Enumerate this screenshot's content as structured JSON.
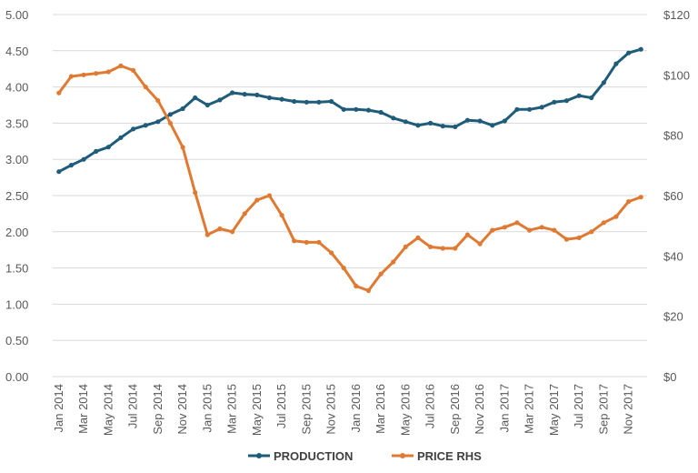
{
  "chart_data": {
    "type": "line",
    "title": "",
    "xlabel": "",
    "ylabel": "",
    "y2label": "",
    "x": [
      "Jan 2014",
      "Feb 2014",
      "Mar 2014",
      "Apr 2014",
      "May 2014",
      "Jun 2014",
      "Jul 2014",
      "Aug 2014",
      "Sep 2014",
      "Oct 2014",
      "Nov 2014",
      "Dec 2014",
      "Jan 2015",
      "Feb 2015",
      "Mar 2015",
      "Apr 2015",
      "May 2015",
      "Jun 2015",
      "Jul 2015",
      "Aug 2015",
      "Sep 2015",
      "Oct 2015",
      "Nov 2015",
      "Dec 2015",
      "Jan 2016",
      "Feb 2016",
      "Mar 2016",
      "Apr 2016",
      "May 2016",
      "Jun 2016",
      "Jul 2016",
      "Aug 2016",
      "Sep 2016",
      "Oct 2016",
      "Nov 2016",
      "Dec 2016",
      "Jan 2017",
      "Feb 2017",
      "Mar 2017",
      "Apr 2017",
      "May 2017",
      "Jun 2017",
      "Jul 2017",
      "Aug 2017",
      "Sep 2017",
      "Oct 2017",
      "Nov 2017",
      "Dec 2017"
    ],
    "x_tick_labels": [
      "Jan 2014",
      "Mar 2014",
      "May 2014",
      "Jul 2014",
      "Sep 2014",
      "Nov 2014",
      "Jan 2015",
      "Mar 2015",
      "May 2015",
      "Jul 2015",
      "Sep 2015",
      "Nov 2015",
      "Jan 2016",
      "Mar 2016",
      "May 2016",
      "Jul 2016",
      "Sep 2016",
      "Nov 2016",
      "Jan 2017",
      "Mar 2017",
      "May 2017",
      "Jul 2017",
      "Sep 2017",
      "Nov 2017"
    ],
    "y_left": {
      "ylim": [
        0,
        5
      ],
      "ticks": [
        "0.00",
        "0.50",
        "1.00",
        "1.50",
        "2.00",
        "2.50",
        "3.00",
        "3.50",
        "4.00",
        "4.50",
        "5.00"
      ]
    },
    "y_right": {
      "ylim": [
        0,
        120
      ],
      "ticks": [
        "$0",
        "$20",
        "$40",
        "$60",
        "$80",
        "$100",
        "$120"
      ]
    },
    "grid": true,
    "legend_position": "bottom",
    "series": [
      {
        "name": "PRODUCTION",
        "axis": "left",
        "color": "#1f5c7a",
        "values": [
          2.83,
          2.92,
          3.0,
          3.11,
          3.17,
          3.3,
          3.42,
          3.47,
          3.52,
          3.62,
          3.7,
          3.85,
          3.75,
          3.82,
          3.92,
          3.9,
          3.89,
          3.85,
          3.83,
          3.8,
          3.79,
          3.79,
          3.8,
          3.69,
          3.69,
          3.68,
          3.65,
          3.57,
          3.52,
          3.47,
          3.5,
          3.46,
          3.45,
          3.54,
          3.53,
          3.47,
          3.53,
          3.69,
          3.69,
          3.72,
          3.79,
          3.81,
          3.88,
          3.85,
          4.06,
          4.32,
          4.47,
          4.52
        ]
      },
      {
        "name": "PRICE RHS",
        "axis": "right",
        "color": "#e07a33",
        "values": [
          94,
          99.5,
          100,
          100.5,
          101,
          103,
          101.5,
          96,
          91.5,
          84,
          76,
          61,
          47,
          49,
          48,
          54,
          58.5,
          60,
          53.5,
          45,
          44.5,
          44.5,
          41,
          36,
          30,
          28.5,
          34,
          38,
          43,
          46,
          43,
          42.5,
          42.5,
          47,
          44,
          48.5,
          49.5,
          51,
          48.5,
          49.5,
          48.5,
          45.5,
          46,
          48,
          51,
          53,
          58,
          59.5
        ]
      }
    ]
  }
}
